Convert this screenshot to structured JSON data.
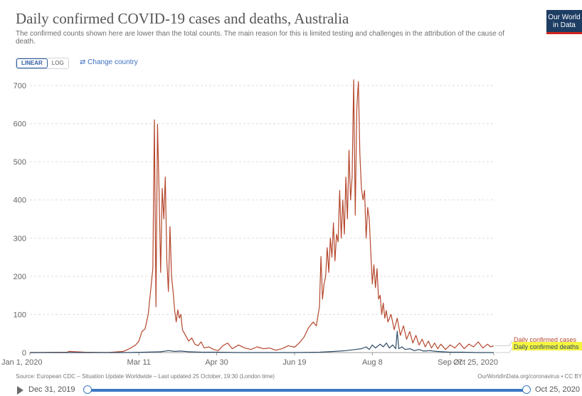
{
  "header": {
    "title": "Daily confirmed COVID-19 cases and deaths, Australia",
    "subtitle": "The confirmed counts shown here are lower than the total counts. The main reason for this is limited testing and challenges in the attribution of the cause of death.",
    "logo_line1": "Our World",
    "logo_line2": "in Data"
  },
  "controls": {
    "linear_label": "LINEAR",
    "log_label": "LOG",
    "change_country_label": "⇄ Change country"
  },
  "footer": {
    "source": "Source: European CDC – Situation Update Worldwide – Last updated 25 October, 19:30 (London time)",
    "credit": "OurWorldInData.org/coronavirus • CC BY"
  },
  "timeline": {
    "start_label": "Dec 31, 2019",
    "end_label": "Oct 25, 2020"
  },
  "colors": {
    "cases": "#b5472d",
    "deaths": "#2e4a66",
    "highlight": "#f5f540",
    "grid": "#dddddd"
  },
  "chart_data": {
    "type": "line",
    "x_tick_labels": [
      "Jan 1, 2020",
      "Mar 11",
      "Apr 30",
      "Jun 19",
      "Aug 8",
      "Sep 27",
      "Oct 25, 2020"
    ],
    "y_tick_labels": [
      "0",
      "100",
      "200",
      "300",
      "400",
      "500",
      "600",
      "700"
    ],
    "ylim": [
      0,
      730
    ],
    "xlim": [
      "2020-01-01",
      "2020-10-25"
    ],
    "grid": "horizontal dashed",
    "legend_position": "right end of lines",
    "series": [
      {
        "name": "Daily confirmed cases",
        "points": [
          [
            "2020-01-01",
            0
          ],
          [
            "2020-01-25",
            1
          ],
          [
            "2020-01-26",
            3
          ],
          [
            "2020-01-30",
            2
          ],
          [
            "2020-02-05",
            1
          ],
          [
            "2020-02-20",
            0
          ],
          [
            "2020-03-01",
            3
          ],
          [
            "2020-03-05",
            10
          ],
          [
            "2020-03-09",
            20
          ],
          [
            "2020-03-11",
            30
          ],
          [
            "2020-03-13",
            55
          ],
          [
            "2020-03-15",
            62
          ],
          [
            "2020-03-17",
            100
          ],
          [
            "2020-03-19",
            180
          ],
          [
            "2020-03-20",
            220
          ],
          [
            "2020-03-21",
            610
          ],
          [
            "2020-03-22",
            120
          ],
          [
            "2020-03-23",
            598
          ],
          [
            "2020-03-24",
            420
          ],
          [
            "2020-03-25",
            210
          ],
          [
            "2020-03-26",
            430
          ],
          [
            "2020-03-27",
            350
          ],
          [
            "2020-03-28",
            460
          ],
          [
            "2020-03-29",
            240
          ],
          [
            "2020-03-30",
            160
          ],
          [
            "2020-03-31",
            330
          ],
          [
            "2020-04-01",
            200
          ],
          [
            "2020-04-02",
            160
          ],
          [
            "2020-04-03",
            110
          ],
          [
            "2020-04-04",
            80
          ],
          [
            "2020-04-05",
            112
          ],
          [
            "2020-04-06",
            90
          ],
          [
            "2020-04-07",
            100
          ],
          [
            "2020-04-08",
            60
          ],
          [
            "2020-04-10",
            45
          ],
          [
            "2020-04-12",
            30
          ],
          [
            "2020-04-14",
            38
          ],
          [
            "2020-04-16",
            22
          ],
          [
            "2020-04-18",
            18
          ],
          [
            "2020-04-20",
            28
          ],
          [
            "2020-04-22",
            12
          ],
          [
            "2020-04-25",
            15
          ],
          [
            "2020-04-28",
            8
          ],
          [
            "2020-05-01",
            5
          ],
          [
            "2020-05-04",
            18
          ],
          [
            "2020-05-07",
            25
          ],
          [
            "2020-05-10",
            10
          ],
          [
            "2020-05-14",
            20
          ],
          [
            "2020-05-18",
            12
          ],
          [
            "2020-05-22",
            8
          ],
          [
            "2020-05-26",
            15
          ],
          [
            "2020-05-30",
            10
          ],
          [
            "2020-06-03",
            12
          ],
          [
            "2020-06-07",
            6
          ],
          [
            "2020-06-11",
            10
          ],
          [
            "2020-06-15",
            18
          ],
          [
            "2020-06-19",
            14
          ],
          [
            "2020-06-22",
            25
          ],
          [
            "2020-06-25",
            40
          ],
          [
            "2020-06-28",
            65
          ],
          [
            "2020-07-01",
            80
          ],
          [
            "2020-07-03",
            70
          ],
          [
            "2020-07-05",
            120
          ],
          [
            "2020-07-06",
            252
          ],
          [
            "2020-07-07",
            140
          ],
          [
            "2020-07-08",
            180
          ],
          [
            "2020-07-09",
            200
          ],
          [
            "2020-07-10",
            275
          ],
          [
            "2020-07-11",
            210
          ],
          [
            "2020-07-12",
            300
          ],
          [
            "2020-07-13",
            250
          ],
          [
            "2020-07-14",
            340
          ],
          [
            "2020-07-15",
            240
          ],
          [
            "2020-07-16",
            310
          ],
          [
            "2020-07-17",
            290
          ],
          [
            "2020-07-18",
            425
          ],
          [
            "2020-07-19",
            300
          ],
          [
            "2020-07-20",
            400
          ],
          [
            "2020-07-21",
            310
          ],
          [
            "2020-07-22",
            460
          ],
          [
            "2020-07-23",
            350
          ],
          [
            "2020-07-24",
            530
          ],
          [
            "2020-07-25",
            400
          ],
          [
            "2020-07-26",
            460
          ],
          [
            "2020-07-27",
            715
          ],
          [
            "2020-07-28",
            360
          ],
          [
            "2020-07-29",
            640
          ],
          [
            "2020-07-30",
            710
          ],
          [
            "2020-07-31",
            520
          ],
          [
            "2020-08-01",
            430
          ],
          [
            "2020-08-02",
            400
          ],
          [
            "2020-08-03",
            425
          ],
          [
            "2020-08-04",
            300
          ],
          [
            "2020-08-05",
            380
          ],
          [
            "2020-08-06",
            350
          ],
          [
            "2020-08-07",
            260
          ],
          [
            "2020-08-08",
            180
          ],
          [
            "2020-08-09",
            230
          ],
          [
            "2020-08-10",
            170
          ],
          [
            "2020-08-11",
            220
          ],
          [
            "2020-08-12",
            140
          ],
          [
            "2020-08-13",
            150
          ],
          [
            "2020-08-14",
            100
          ],
          [
            "2020-08-15",
            130
          ],
          [
            "2020-08-16",
            90
          ],
          [
            "2020-08-17",
            110
          ],
          [
            "2020-08-18",
            80
          ],
          [
            "2020-08-20",
            100
          ],
          [
            "2020-08-22",
            60
          ],
          [
            "2020-08-24",
            90
          ],
          [
            "2020-08-26",
            45
          ],
          [
            "2020-08-28",
            70
          ],
          [
            "2020-08-30",
            35
          ],
          [
            "2020-09-01",
            55
          ],
          [
            "2020-09-03",
            25
          ],
          [
            "2020-09-05",
            45
          ],
          [
            "2020-09-07",
            20
          ],
          [
            "2020-09-09",
            35
          ],
          [
            "2020-09-11",
            15
          ],
          [
            "2020-09-13",
            30
          ],
          [
            "2020-09-15",
            12
          ],
          [
            "2020-09-17",
            25
          ],
          [
            "2020-09-19",
            10
          ],
          [
            "2020-09-21",
            22
          ],
          [
            "2020-09-24",
            8
          ],
          [
            "2020-09-27",
            20
          ],
          [
            "2020-09-30",
            12
          ],
          [
            "2020-10-03",
            25
          ],
          [
            "2020-10-06",
            10
          ],
          [
            "2020-10-09",
            22
          ],
          [
            "2020-10-12",
            15
          ],
          [
            "2020-10-15",
            28
          ],
          [
            "2020-10-18",
            12
          ],
          [
            "2020-10-21",
            22
          ],
          [
            "2020-10-23",
            15
          ],
          [
            "2020-10-25",
            18
          ]
        ]
      },
      {
        "name": "Daily confirmed deaths",
        "points": [
          [
            "2020-01-01",
            0
          ],
          [
            "2020-03-01",
            0
          ],
          [
            "2020-03-15",
            1
          ],
          [
            "2020-03-25",
            2
          ],
          [
            "2020-03-30",
            5
          ],
          [
            "2020-04-03",
            3
          ],
          [
            "2020-04-07",
            4
          ],
          [
            "2020-04-12",
            2
          ],
          [
            "2020-04-20",
            1
          ],
          [
            "2020-04-30",
            1
          ],
          [
            "2020-05-15",
            0
          ],
          [
            "2020-06-19",
            0
          ],
          [
            "2020-07-05",
            1
          ],
          [
            "2020-07-15",
            3
          ],
          [
            "2020-07-22",
            5
          ],
          [
            "2020-07-28",
            8
          ],
          [
            "2020-08-01",
            10
          ],
          [
            "2020-08-04",
            15
          ],
          [
            "2020-08-06",
            8
          ],
          [
            "2020-08-08",
            20
          ],
          [
            "2020-08-10",
            12
          ],
          [
            "2020-08-13",
            22
          ],
          [
            "2020-08-15",
            15
          ],
          [
            "2020-08-17",
            25
          ],
          [
            "2020-08-19",
            12
          ],
          [
            "2020-08-21",
            20
          ],
          [
            "2020-08-23",
            10
          ],
          [
            "2020-08-24",
            56
          ],
          [
            "2020-08-25",
            10
          ],
          [
            "2020-08-27",
            15
          ],
          [
            "2020-08-29",
            8
          ],
          [
            "2020-09-01",
            10
          ],
          [
            "2020-09-04",
            5
          ],
          [
            "2020-09-07",
            8
          ],
          [
            "2020-09-10",
            4
          ],
          [
            "2020-09-14",
            5
          ],
          [
            "2020-09-18",
            3
          ],
          [
            "2020-09-22",
            2
          ],
          [
            "2020-09-27",
            1
          ],
          [
            "2020-10-05",
            1
          ],
          [
            "2020-10-15",
            0
          ],
          [
            "2020-10-25",
            0
          ]
        ]
      }
    ]
  }
}
